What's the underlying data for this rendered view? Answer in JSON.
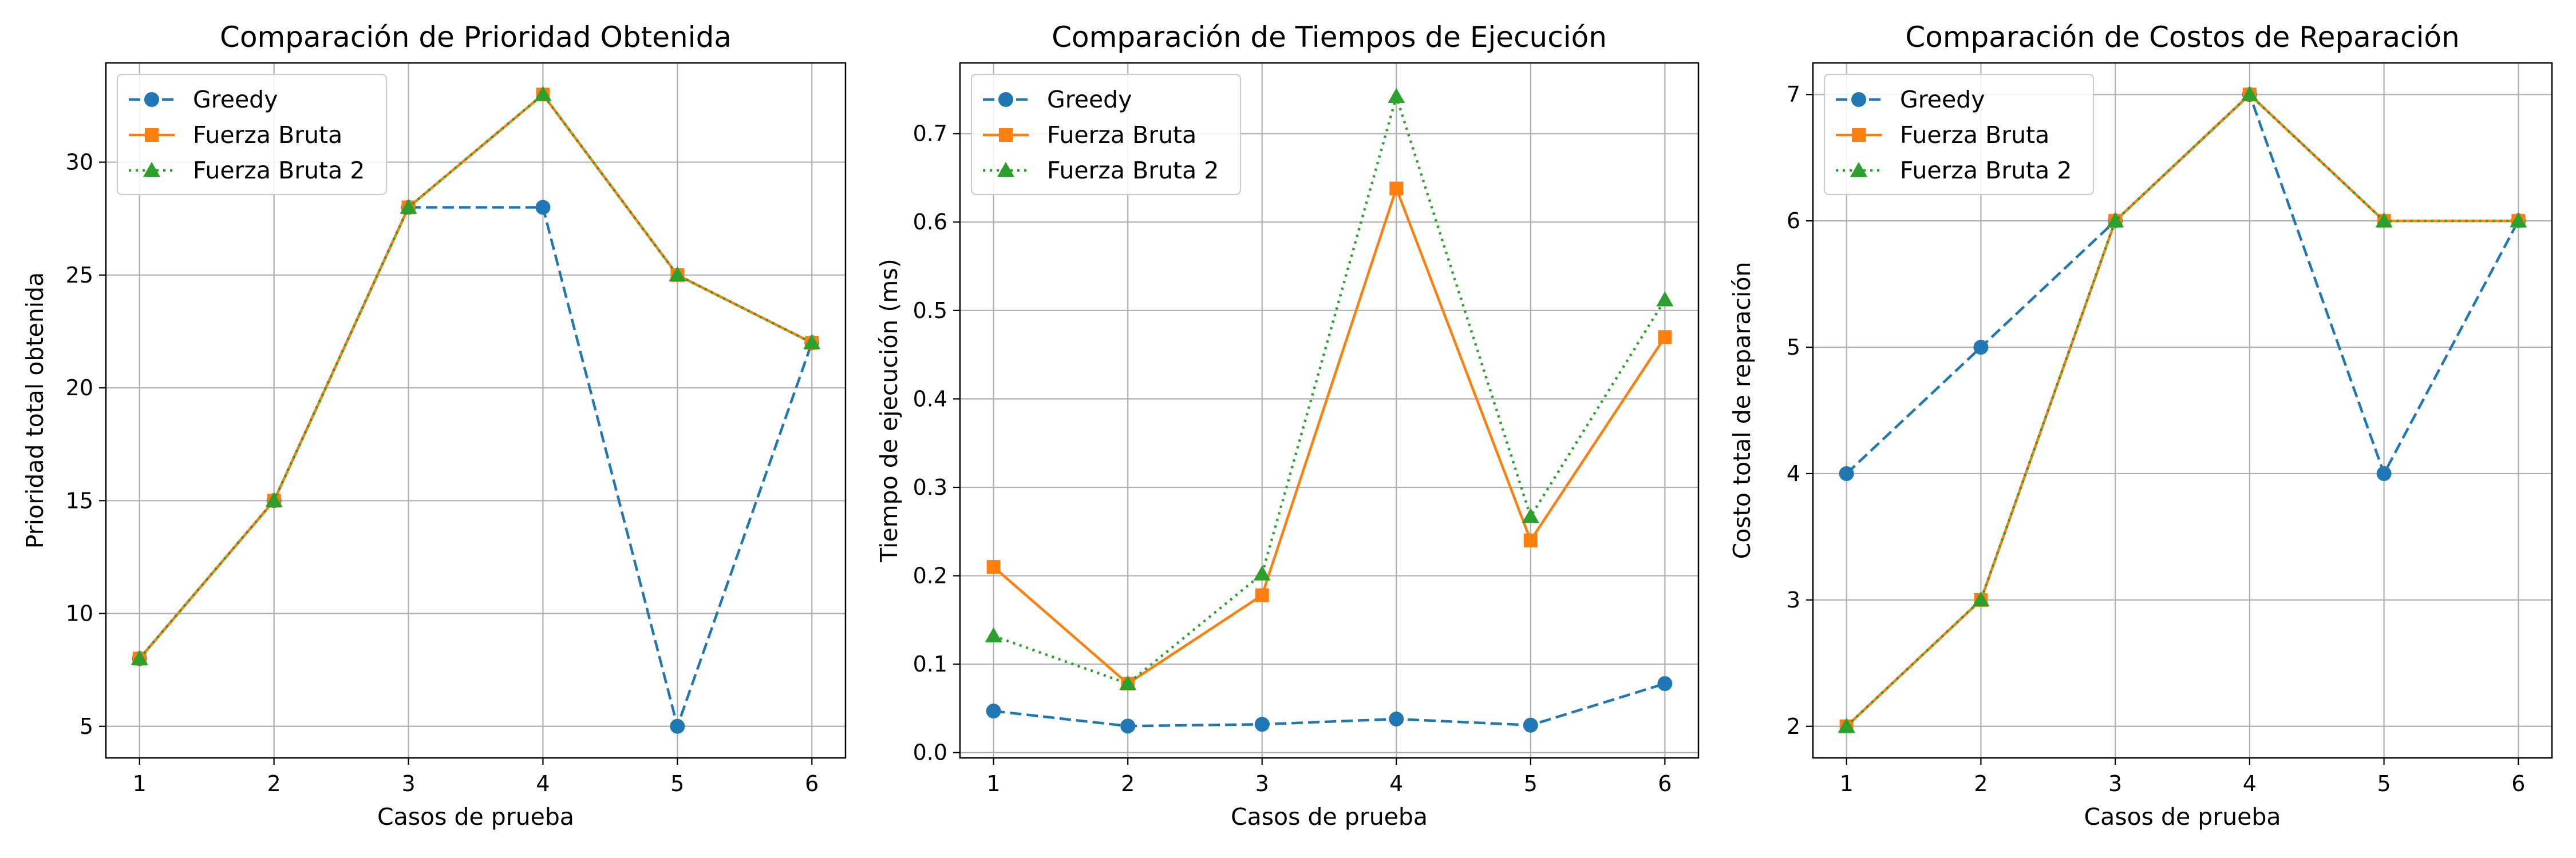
{
  "colors": {
    "greedy": "#1f77b4",
    "fuerza_bruta": "#ff7f0e",
    "fuerza_bruta_2": "#2ca02c",
    "grid": "#b0b0b0",
    "axes": "#000000"
  },
  "chart_data": [
    {
      "type": "line",
      "title": "Comparación de Prioridad Obtenida",
      "xlabel": "Casos de prueba",
      "ylabel": "Prioridad total obtenida",
      "x": [
        1,
        2,
        3,
        4,
        5,
        6
      ],
      "xticks": [
        "1",
        "2",
        "3",
        "4",
        "5",
        "6"
      ],
      "xlim": [
        0.75,
        6.25
      ],
      "ylim": [
        3.6,
        34.4
      ],
      "yticks": [
        5,
        10,
        15,
        20,
        25,
        30
      ],
      "ytick_labels": [
        "5",
        "10",
        "15",
        "20",
        "25",
        "30"
      ],
      "grid": true,
      "legend_position": "upper-left",
      "series": [
        {
          "name": "Greedy",
          "values": [
            8,
            15,
            28,
            28,
            5,
            22
          ],
          "color": "#1f77b4",
          "linestyle": "dashed",
          "marker": "circle"
        },
        {
          "name": "Fuerza Bruta",
          "values": [
            8,
            15,
            28,
            33,
            25,
            22
          ],
          "color": "#ff7f0e",
          "linestyle": "solid",
          "marker": "square"
        },
        {
          "name": "Fuerza Bruta 2",
          "values": [
            8,
            15,
            28,
            33,
            25,
            22
          ],
          "color": "#2ca02c",
          "linestyle": "dotted",
          "marker": "triangle"
        }
      ]
    },
    {
      "type": "line",
      "title": "Comparación de Tiempos de Ejecución",
      "xlabel": "Casos de prueba",
      "ylabel": "Tiempo de ejecución (ms)",
      "x": [
        1,
        2,
        3,
        4,
        5,
        6
      ],
      "xticks": [
        "1",
        "2",
        "3",
        "4",
        "5",
        "6"
      ],
      "xlim": [
        0.75,
        6.25
      ],
      "ylim": [
        -0.006,
        0.78
      ],
      "yticks": [
        0.0,
        0.1,
        0.2,
        0.3,
        0.4,
        0.5,
        0.6,
        0.7
      ],
      "ytick_labels": [
        "0.0",
        "0.1",
        "0.2",
        "0.3",
        "0.4",
        "0.5",
        "0.6",
        "0.7"
      ],
      "grid": true,
      "legend_position": "upper-left",
      "series": [
        {
          "name": "Greedy",
          "values": [
            0.047,
            0.03,
            0.032,
            0.038,
            0.031,
            0.078
          ],
          "color": "#1f77b4",
          "linestyle": "dashed",
          "marker": "circle"
        },
        {
          "name": "Fuerza Bruta",
          "values": [
            0.21,
            0.078,
            0.178,
            0.638,
            0.24,
            0.47
          ],
          "color": "#ff7f0e",
          "linestyle": "solid",
          "marker": "square"
        },
        {
          "name": "Fuerza Bruta 2",
          "values": [
            0.132,
            0.078,
            0.202,
            0.742,
            0.267,
            0.512
          ],
          "color": "#2ca02c",
          "linestyle": "dotted",
          "marker": "triangle"
        }
      ]
    },
    {
      "type": "line",
      "title": "Comparación de Costos de Reparación",
      "xlabel": "Casos de prueba",
      "ylabel": "Costo total de reparación",
      "x": [
        1,
        2,
        3,
        4,
        5,
        6
      ],
      "xticks": [
        "1",
        "2",
        "3",
        "4",
        "5",
        "6"
      ],
      "xlim": [
        0.75,
        6.25
      ],
      "ylim": [
        1.75,
        7.25
      ],
      "yticks": [
        2,
        3,
        4,
        5,
        6,
        7
      ],
      "ytick_labels": [
        "2",
        "3",
        "4",
        "5",
        "6",
        "7"
      ],
      "grid": true,
      "legend_position": "upper-left",
      "series": [
        {
          "name": "Greedy",
          "values": [
            4,
            5,
            6,
            7,
            4,
            6
          ],
          "color": "#1f77b4",
          "linestyle": "dashed",
          "marker": "circle"
        },
        {
          "name": "Fuerza Bruta",
          "values": [
            2,
            3,
            6,
            7,
            6,
            6
          ],
          "color": "#ff7f0e",
          "linestyle": "solid",
          "marker": "square"
        },
        {
          "name": "Fuerza Bruta 2",
          "values": [
            2,
            3,
            6,
            7,
            6,
            6
          ],
          "color": "#2ca02c",
          "linestyle": "dotted",
          "marker": "triangle"
        }
      ]
    }
  ]
}
